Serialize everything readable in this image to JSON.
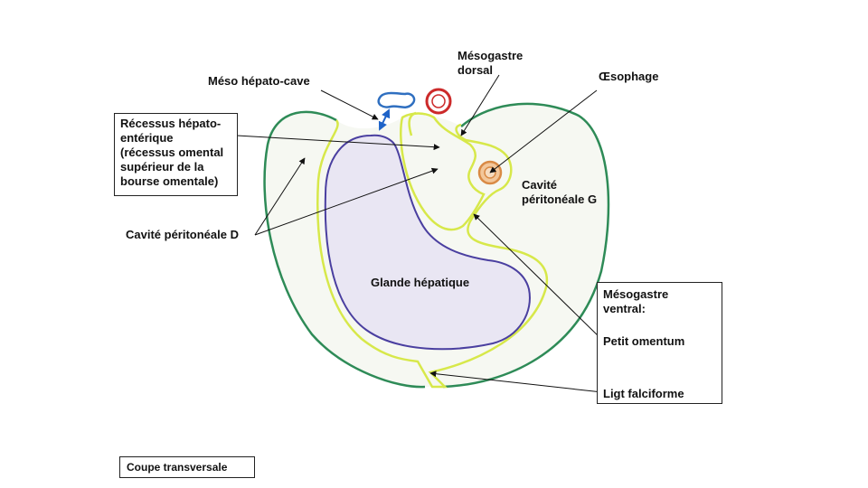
{
  "labels": {
    "meso_hepato_cave": "Méso hépato-cave",
    "mesogastre_dorsal": [
      "Mésogastre",
      "dorsal"
    ],
    "oesophage": "Œsophage",
    "recessus": [
      "Récessus hépato-",
      "entérique",
      "(récessus omental",
      "supérieur de la",
      "bourse omentale)"
    ],
    "cavite_d": "Cavité péritonéale D",
    "cavite_g": [
      "Cavité",
      "péritonéale G"
    ],
    "glande": "Glande hépatique",
    "mesogastre_ventral": {
      "title": [
        "Mésogastre",
        "ventral:"
      ],
      "petit_omentum": "Petit omentum",
      "ligt_falciforme": "Ligt falciforme"
    },
    "coupe": "Coupe transversale"
  },
  "colors": {
    "body_outline": "#2e8b57",
    "peritoneum": "#d7e84a",
    "liver": "#4a3fa0",
    "liver_fill": "#e9e6f3",
    "vein": "#2f6fc0",
    "aorta": "#cc2a2a",
    "oesophagus": "#d98a45",
    "arrow": "#1e63c8"
  }
}
